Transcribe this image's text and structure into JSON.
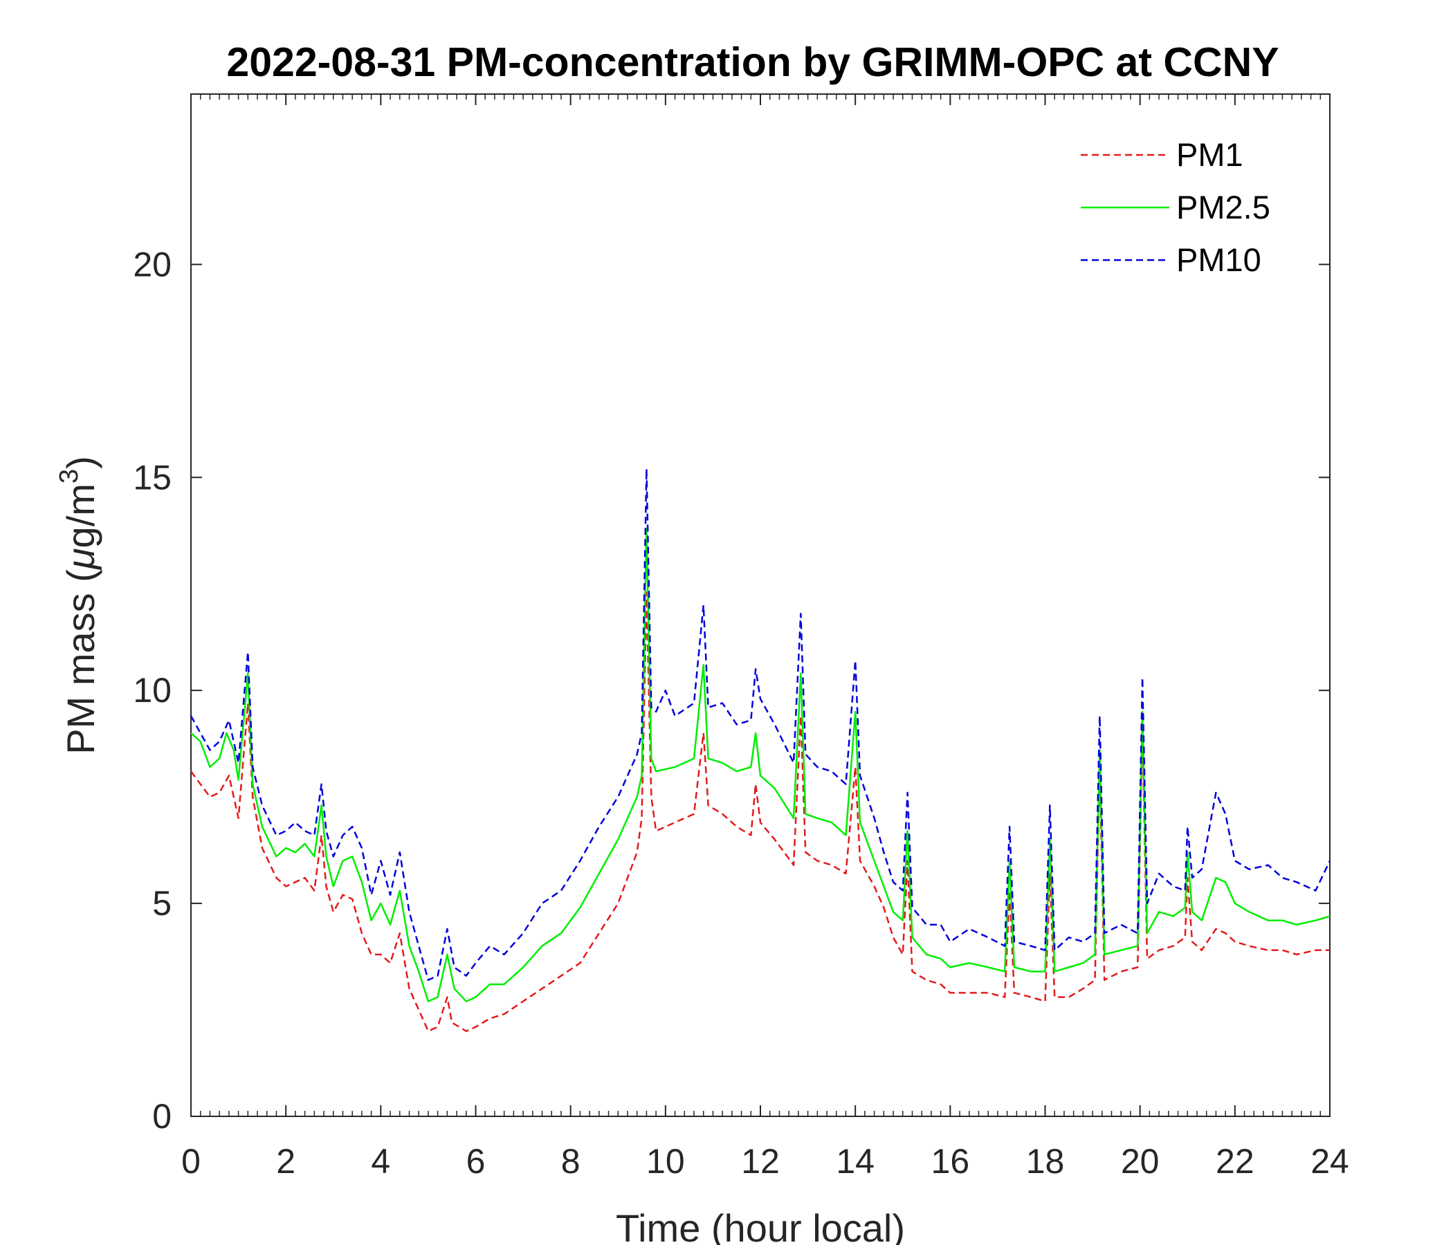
{
  "chart_data": {
    "type": "line",
    "title": "2022-08-31 PM-concentration by GRIMM-OPC at CCNY",
    "xlabel": "Time (hour local)",
    "ylabel": {
      "prefix": "PM mass (",
      "mu": "μ",
      "unit": "g/m",
      "exponent": "3",
      "suffix": ")"
    },
    "xlim": [
      0,
      24
    ],
    "ylim": [
      0,
      24
    ],
    "x_ticks": [
      0,
      2,
      4,
      6,
      8,
      10,
      12,
      14,
      16,
      18,
      20,
      22,
      24
    ],
    "y_ticks": [
      0,
      5,
      10,
      15,
      20
    ],
    "grid": false,
    "legend_position": "top-right",
    "series": [
      {
        "name": "PM1",
        "color": "#e41a1c",
        "style": "dashed",
        "points": [
          [
            0,
            8.1
          ],
          [
            0.2,
            7.8
          ],
          [
            0.4,
            7.5
          ],
          [
            0.6,
            7.6
          ],
          [
            0.8,
            8.0
          ],
          [
            1.0,
            7.0
          ],
          [
            1.2,
            9.7
          ],
          [
            1.3,
            7.5
          ],
          [
            1.5,
            6.3
          ],
          [
            1.8,
            5.6
          ],
          [
            2.0,
            5.4
          ],
          [
            2.2,
            5.5
          ],
          [
            2.4,
            5.6
          ],
          [
            2.6,
            5.3
          ],
          [
            2.75,
            6.6
          ],
          [
            2.85,
            5.4
          ],
          [
            3.0,
            4.8
          ],
          [
            3.2,
            5.2
          ],
          [
            3.4,
            5.1
          ],
          [
            3.6,
            4.3
          ],
          [
            3.8,
            3.8
          ],
          [
            4.0,
            3.8
          ],
          [
            4.2,
            3.6
          ],
          [
            4.4,
            4.3
          ],
          [
            4.6,
            3.0
          ],
          [
            4.8,
            2.5
          ],
          [
            5.0,
            2.0
          ],
          [
            5.2,
            2.1
          ],
          [
            5.4,
            2.8
          ],
          [
            5.5,
            2.2
          ],
          [
            5.8,
            2.0
          ],
          [
            6.0,
            2.1
          ],
          [
            6.3,
            2.3
          ],
          [
            6.6,
            2.4
          ],
          [
            7.0,
            2.7
          ],
          [
            7.4,
            3.0
          ],
          [
            7.8,
            3.3
          ],
          [
            8.2,
            3.6
          ],
          [
            8.6,
            4.3
          ],
          [
            9.0,
            5.0
          ],
          [
            9.4,
            6.2
          ],
          [
            9.5,
            7.0
          ],
          [
            9.6,
            12.3
          ],
          [
            9.7,
            7.5
          ],
          [
            9.8,
            6.7
          ],
          [
            10.2,
            6.9
          ],
          [
            10.6,
            7.1
          ],
          [
            10.8,
            9.0
          ],
          [
            10.9,
            7.3
          ],
          [
            11.2,
            7.1
          ],
          [
            11.5,
            6.8
          ],
          [
            11.8,
            6.6
          ],
          [
            11.9,
            7.8
          ],
          [
            12.0,
            6.9
          ],
          [
            12.3,
            6.5
          ],
          [
            12.7,
            5.9
          ],
          [
            12.85,
            9.4
          ],
          [
            12.95,
            6.2
          ],
          [
            13.2,
            6.0
          ],
          [
            13.5,
            5.9
          ],
          [
            13.8,
            5.7
          ],
          [
            14.0,
            8.2
          ],
          [
            14.1,
            6.0
          ],
          [
            14.4,
            5.4
          ],
          [
            14.6,
            4.9
          ],
          [
            14.8,
            4.2
          ],
          [
            15.0,
            3.8
          ],
          [
            15.1,
            6.0
          ],
          [
            15.2,
            3.4
          ],
          [
            15.5,
            3.2
          ],
          [
            15.8,
            3.1
          ],
          [
            16.0,
            2.9
          ],
          [
            16.4,
            2.9
          ],
          [
            16.8,
            2.9
          ],
          [
            17.15,
            2.8
          ],
          [
            17.25,
            5.3
          ],
          [
            17.35,
            2.9
          ],
          [
            17.7,
            2.8
          ],
          [
            18.0,
            2.7
          ],
          [
            18.1,
            5.7
          ],
          [
            18.2,
            2.8
          ],
          [
            18.5,
            2.8
          ],
          [
            18.8,
            3.0
          ],
          [
            19.05,
            3.2
          ],
          [
            19.15,
            8.2
          ],
          [
            19.25,
            3.2
          ],
          [
            19.6,
            3.4
          ],
          [
            19.95,
            3.5
          ],
          [
            20.05,
            9.1
          ],
          [
            20.15,
            3.7
          ],
          [
            20.4,
            3.9
          ],
          [
            20.7,
            4.0
          ],
          [
            20.95,
            4.2
          ],
          [
            21.0,
            5.6
          ],
          [
            21.1,
            4.1
          ],
          [
            21.3,
            3.9
          ],
          [
            21.6,
            4.4
          ],
          [
            21.8,
            4.3
          ],
          [
            22.0,
            4.1
          ],
          [
            22.3,
            4.0
          ],
          [
            22.7,
            3.9
          ],
          [
            23.0,
            3.9
          ],
          [
            23.3,
            3.8
          ],
          [
            23.7,
            3.9
          ],
          [
            24.0,
            3.9
          ]
        ]
      },
      {
        "name": "PM2.5",
        "color": "#00ee00",
        "style": "solid",
        "points": [
          [
            0,
            9.0
          ],
          [
            0.2,
            8.8
          ],
          [
            0.4,
            8.2
          ],
          [
            0.6,
            8.4
          ],
          [
            0.75,
            9.0
          ],
          [
            0.9,
            8.6
          ],
          [
            1.0,
            7.9
          ],
          [
            1.2,
            10.4
          ],
          [
            1.3,
            7.8
          ],
          [
            1.5,
            6.8
          ],
          [
            1.8,
            6.1
          ],
          [
            2.0,
            6.3
          ],
          [
            2.2,
            6.2
          ],
          [
            2.4,
            6.4
          ],
          [
            2.6,
            6.1
          ],
          [
            2.75,
            7.3
          ],
          [
            2.85,
            6.1
          ],
          [
            3.0,
            5.4
          ],
          [
            3.2,
            6.0
          ],
          [
            3.4,
            6.1
          ],
          [
            3.6,
            5.5
          ],
          [
            3.8,
            4.6
          ],
          [
            4.0,
            5.0
          ],
          [
            4.2,
            4.5
          ],
          [
            4.4,
            5.3
          ],
          [
            4.6,
            4.0
          ],
          [
            4.8,
            3.4
          ],
          [
            5.0,
            2.7
          ],
          [
            5.2,
            2.8
          ],
          [
            5.4,
            3.8
          ],
          [
            5.55,
            3.0
          ],
          [
            5.8,
            2.7
          ],
          [
            6.0,
            2.8
          ],
          [
            6.3,
            3.1
          ],
          [
            6.6,
            3.1
          ],
          [
            7.0,
            3.5
          ],
          [
            7.4,
            4.0
          ],
          [
            7.8,
            4.3
          ],
          [
            8.2,
            4.9
          ],
          [
            8.6,
            5.7
          ],
          [
            9.0,
            6.5
          ],
          [
            9.4,
            7.5
          ],
          [
            9.5,
            8.0
          ],
          [
            9.6,
            13.8
          ],
          [
            9.7,
            8.4
          ],
          [
            9.8,
            8.1
          ],
          [
            10.2,
            8.2
          ],
          [
            10.6,
            8.4
          ],
          [
            10.8,
            10.6
          ],
          [
            10.9,
            8.4
          ],
          [
            11.2,
            8.3
          ],
          [
            11.5,
            8.1
          ],
          [
            11.8,
            8.2
          ],
          [
            11.9,
            9.0
          ],
          [
            12.0,
            8.0
          ],
          [
            12.3,
            7.7
          ],
          [
            12.7,
            7.0
          ],
          [
            12.85,
            10.4
          ],
          [
            12.95,
            7.1
          ],
          [
            13.2,
            7.0
          ],
          [
            13.5,
            6.9
          ],
          [
            13.8,
            6.6
          ],
          [
            14.0,
            9.5
          ],
          [
            14.1,
            6.9
          ],
          [
            14.4,
            6.0
          ],
          [
            14.6,
            5.4
          ],
          [
            14.8,
            4.8
          ],
          [
            15.0,
            4.6
          ],
          [
            15.1,
            6.7
          ],
          [
            15.2,
            4.2
          ],
          [
            15.5,
            3.8
          ],
          [
            15.8,
            3.7
          ],
          [
            16.0,
            3.5
          ],
          [
            16.4,
            3.6
          ],
          [
            16.8,
            3.5
          ],
          [
            17.15,
            3.4
          ],
          [
            17.25,
            6.0
          ],
          [
            17.35,
            3.5
          ],
          [
            17.7,
            3.4
          ],
          [
            18.0,
            3.4
          ],
          [
            18.1,
            6.5
          ],
          [
            18.2,
            3.4
          ],
          [
            18.5,
            3.5
          ],
          [
            18.8,
            3.6
          ],
          [
            19.05,
            3.8
          ],
          [
            19.15,
            8.6
          ],
          [
            19.25,
            3.8
          ],
          [
            19.6,
            3.9
          ],
          [
            19.95,
            4.0
          ],
          [
            20.05,
            9.5
          ],
          [
            20.15,
            4.3
          ],
          [
            20.4,
            4.8
          ],
          [
            20.7,
            4.7
          ],
          [
            20.95,
            4.9
          ],
          [
            21.0,
            6.2
          ],
          [
            21.1,
            4.8
          ],
          [
            21.3,
            4.6
          ],
          [
            21.6,
            5.6
          ],
          [
            21.8,
            5.5
          ],
          [
            22.0,
            5.0
          ],
          [
            22.3,
            4.8
          ],
          [
            22.7,
            4.6
          ],
          [
            23.0,
            4.6
          ],
          [
            23.3,
            4.5
          ],
          [
            23.7,
            4.6
          ],
          [
            24.0,
            4.7
          ]
        ]
      },
      {
        "name": "PM10",
        "color": "#0000dd",
        "style": "dashed",
        "points": [
          [
            0,
            9.4
          ],
          [
            0.2,
            9.0
          ],
          [
            0.4,
            8.6
          ],
          [
            0.6,
            8.8
          ],
          [
            0.8,
            9.3
          ],
          [
            1.0,
            8.3
          ],
          [
            1.2,
            10.9
          ],
          [
            1.3,
            8.2
          ],
          [
            1.5,
            7.3
          ],
          [
            1.8,
            6.6
          ],
          [
            2.0,
            6.7
          ],
          [
            2.2,
            6.9
          ],
          [
            2.4,
            6.7
          ],
          [
            2.6,
            6.6
          ],
          [
            2.75,
            7.8
          ],
          [
            2.85,
            6.7
          ],
          [
            3.0,
            6.1
          ],
          [
            3.2,
            6.6
          ],
          [
            3.4,
            6.8
          ],
          [
            3.6,
            6.3
          ],
          [
            3.8,
            5.2
          ],
          [
            4.0,
            6.0
          ],
          [
            4.2,
            5.2
          ],
          [
            4.4,
            6.2
          ],
          [
            4.6,
            4.8
          ],
          [
            4.8,
            4.0
          ],
          [
            5.0,
            3.2
          ],
          [
            5.2,
            3.3
          ],
          [
            5.4,
            4.4
          ],
          [
            5.55,
            3.5
          ],
          [
            5.8,
            3.3
          ],
          [
            6.0,
            3.6
          ],
          [
            6.3,
            4.0
          ],
          [
            6.6,
            3.8
          ],
          [
            7.0,
            4.3
          ],
          [
            7.4,
            5.0
          ],
          [
            7.8,
            5.3
          ],
          [
            8.2,
            6.0
          ],
          [
            8.6,
            6.8
          ],
          [
            9.0,
            7.5
          ],
          [
            9.4,
            8.5
          ],
          [
            9.5,
            9.0
          ],
          [
            9.6,
            15.2
          ],
          [
            9.7,
            9.6
          ],
          [
            9.8,
            9.5
          ],
          [
            10.0,
            10.0
          ],
          [
            10.2,
            9.4
          ],
          [
            10.6,
            9.7
          ],
          [
            10.8,
            12.0
          ],
          [
            10.9,
            9.6
          ],
          [
            11.2,
            9.7
          ],
          [
            11.5,
            9.2
          ],
          [
            11.8,
            9.3
          ],
          [
            11.9,
            10.5
          ],
          [
            12.0,
            9.8
          ],
          [
            12.3,
            9.2
          ],
          [
            12.7,
            8.3
          ],
          [
            12.85,
            11.8
          ],
          [
            12.95,
            8.5
          ],
          [
            13.2,
            8.2
          ],
          [
            13.5,
            8.1
          ],
          [
            13.8,
            7.8
          ],
          [
            14.0,
            10.7
          ],
          [
            14.1,
            8.0
          ],
          [
            14.4,
            7.0
          ],
          [
            14.6,
            6.2
          ],
          [
            14.8,
            5.5
          ],
          [
            15.0,
            5.3
          ],
          [
            15.1,
            7.6
          ],
          [
            15.2,
            4.9
          ],
          [
            15.5,
            4.5
          ],
          [
            15.8,
            4.5
          ],
          [
            16.0,
            4.1
          ],
          [
            16.4,
            4.4
          ],
          [
            16.8,
            4.2
          ],
          [
            17.15,
            4.0
          ],
          [
            17.25,
            6.8
          ],
          [
            17.35,
            4.1
          ],
          [
            17.7,
            4.0
          ],
          [
            18.0,
            3.9
          ],
          [
            18.1,
            7.3
          ],
          [
            18.2,
            3.9
          ],
          [
            18.5,
            4.2
          ],
          [
            18.8,
            4.1
          ],
          [
            19.05,
            4.3
          ],
          [
            19.15,
            9.4
          ],
          [
            19.25,
            4.3
          ],
          [
            19.6,
            4.5
          ],
          [
            19.95,
            4.3
          ],
          [
            20.05,
            10.3
          ],
          [
            20.15,
            5.0
          ],
          [
            20.4,
            5.7
          ],
          [
            20.7,
            5.4
          ],
          [
            20.95,
            5.3
          ],
          [
            21.0,
            6.8
          ],
          [
            21.1,
            5.6
          ],
          [
            21.3,
            5.8
          ],
          [
            21.6,
            7.6
          ],
          [
            21.8,
            7.1
          ],
          [
            22.0,
            6.0
          ],
          [
            22.3,
            5.8
          ],
          [
            22.7,
            5.9
          ],
          [
            23.0,
            5.6
          ],
          [
            23.3,
            5.5
          ],
          [
            23.7,
            5.3
          ],
          [
            24.0,
            6.0
          ]
        ]
      }
    ]
  }
}
